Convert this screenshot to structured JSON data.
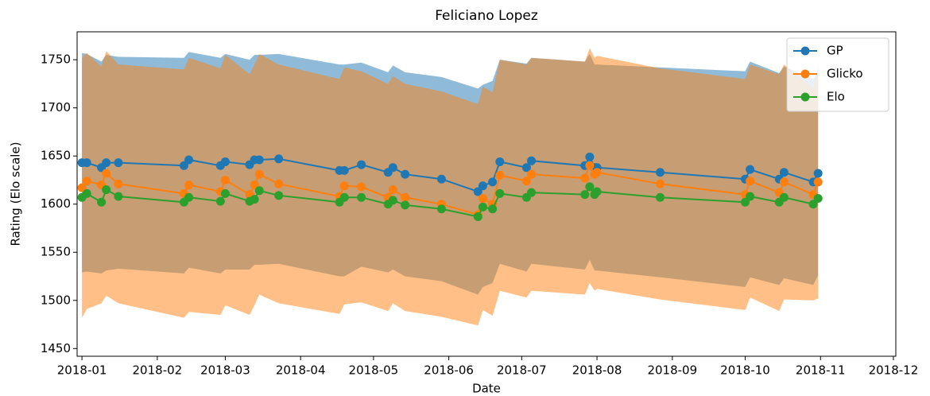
{
  "chart_data": {
    "type": "line",
    "title": "Feliciano Lopez",
    "x_label": "Date",
    "y_label": "Rating (Elo scale)",
    "x": [
      0,
      2,
      8,
      10,
      15,
      42,
      44,
      57,
      59,
      69,
      71,
      73,
      81,
      106,
      108,
      115,
      126,
      128,
      133,
      148,
      163,
      165,
      169,
      172,
      183,
      185,
      207,
      209,
      211,
      212,
      238,
      273,
      275,
      287,
      289,
      301,
      303
    ],
    "series": [
      {
        "name": "GP",
        "color": "#1f77b4",
        "values": [
          1643,
          1643,
          1638,
          1643,
          1643,
          1640,
          1646,
          1640,
          1644,
          1641,
          1646,
          1646,
          1647,
          1635,
          1635,
          1641,
          1633,
          1638,
          1631,
          1626,
          1613,
          1619,
          1623,
          1644,
          1638,
          1645,
          1640,
          1649,
          1638,
          1638,
          1633,
          1626,
          1636,
          1626,
          1633,
          1623,
          1632
        ],
        "upper": [
          1757,
          1756,
          1748,
          1755,
          1753,
          1752,
          1758,
          1752,
          1756,
          1750,
          1755,
          1755,
          1756,
          1745,
          1745,
          1747,
          1737,
          1744,
          1737,
          1732,
          1720,
          1724,
          1728,
          1750,
          1746,
          1752,
          1748,
          1756,
          1745,
          1745,
          1742,
          1738,
          1748,
          1736,
          1743,
          1730,
          1738
        ],
        "lower": [
          1529,
          1530,
          1528,
          1531,
          1533,
          1528,
          1534,
          1528,
          1532,
          1532,
          1537,
          1537,
          1538,
          1525,
          1525,
          1535,
          1529,
          1532,
          1525,
          1520,
          1506,
          1514,
          1518,
          1538,
          1530,
          1538,
          1532,
          1542,
          1531,
          1531,
          1524,
          1514,
          1524,
          1516,
          1523,
          1516,
          1526
        ]
      },
      {
        "name": "Glicko",
        "color": "#ff7f0e",
        "values": [
          1617,
          1624,
          1620,
          1632,
          1621,
          1611,
          1620,
          1613,
          1625,
          1610,
          1620,
          1631,
          1621,
          1608,
          1619,
          1618,
          1607,
          1615,
          1607,
          1600,
          1589,
          1606,
          1600,
          1630,
          1624,
          1631,
          1627,
          1640,
          1631,
          1633,
          1621,
          1610,
          1624,
          1612,
          1623,
          1610,
          1623
        ],
        "upper": [
          1752,
          1757,
          1743,
          1759,
          1745,
          1740,
          1752,
          1741,
          1755,
          1735,
          1745,
          1756,
          1745,
          1730,
          1742,
          1738,
          1725,
          1733,
          1725,
          1717,
          1704,
          1722,
          1716,
          1750,
          1745,
          1752,
          1748,
          1762,
          1752,
          1754,
          1741,
          1730,
          1745,
          1735,
          1745,
          1720,
          1744
        ],
        "lower": [
          1482,
          1491,
          1497,
          1505,
          1497,
          1482,
          1488,
          1485,
          1495,
          1485,
          1495,
          1506,
          1497,
          1486,
          1496,
          1498,
          1489,
          1497,
          1489,
          1483,
          1474,
          1490,
          1484,
          1510,
          1503,
          1510,
          1506,
          1518,
          1510,
          1512,
          1501,
          1490,
          1503,
          1489,
          1501,
          1500,
          1502
        ]
      },
      {
        "name": "Elo",
        "color": "#2ca02c",
        "values": [
          1607,
          1611,
          1602,
          1615,
          1608,
          1602,
          1607,
          1603,
          1611,
          1603,
          1605,
          1614,
          1609,
          1602,
          1607,
          1607,
          1600,
          1604,
          1599,
          1595,
          1587,
          1597,
          1595,
          1611,
          1607,
          1612,
          1610,
          1618,
          1610,
          1613,
          1607,
          1602,
          1608,
          1602,
          1607,
          1600,
          1606
        ]
      }
    ],
    "xlim": [
      -2,
      335
    ],
    "xticks": [
      {
        "value": 0,
        "label": "2018-01"
      },
      {
        "value": 31,
        "label": "2018-02"
      },
      {
        "value": 59,
        "label": "2018-03"
      },
      {
        "value": 90,
        "label": "2018-04"
      },
      {
        "value": 120,
        "label": "2018-05"
      },
      {
        "value": 151,
        "label": "2018-06"
      },
      {
        "value": 181,
        "label": "2018-07"
      },
      {
        "value": 212,
        "label": "2018-08"
      },
      {
        "value": 243,
        "label": "2018-09"
      },
      {
        "value": 273,
        "label": "2018-10"
      },
      {
        "value": 304,
        "label": "2018-11"
      },
      {
        "value": 334,
        "label": "2018-12"
      }
    ],
    "ylim": [
      1442,
      1779
    ],
    "yticks": [
      1450,
      1500,
      1550,
      1600,
      1650,
      1700,
      1750
    ],
    "grid": false,
    "legend": "upper right"
  }
}
